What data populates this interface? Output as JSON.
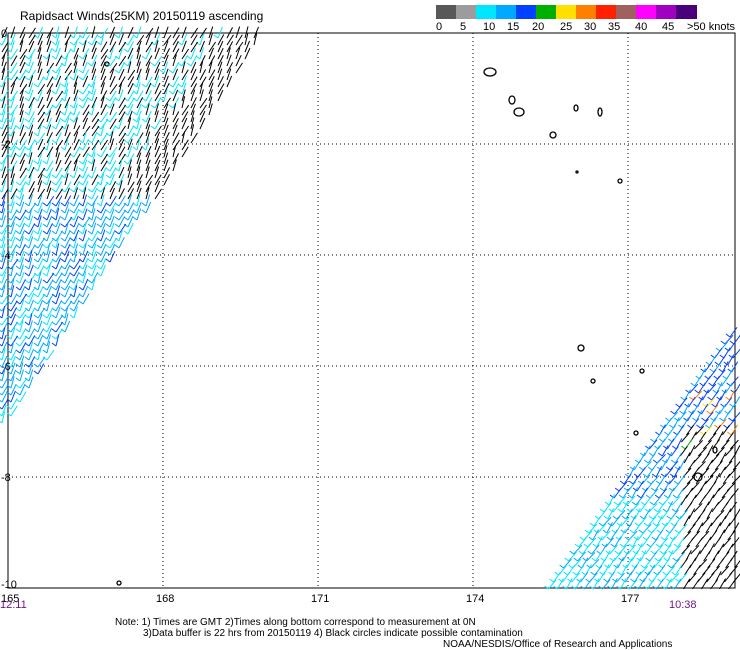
{
  "title": "Rapidsact Winds(25KM) 20150119 ascending",
  "legend": {
    "labels": [
      "0",
      "5",
      "10",
      "15",
      "20",
      "25",
      "30",
      "35",
      "40",
      "45",
      ">50 knots"
    ],
    "colors": [
      "#585858",
      "#9c9c9c",
      "#00e6ff",
      "#00a8ff",
      "#0040ff",
      "#00b000",
      "#ffe000",
      "#ff8000",
      "#ff2000",
      "#a06060",
      "#ff00ff",
      "#a000c0",
      "#4a007a"
    ]
  },
  "map": {
    "x_ticks": [
      "165",
      "168",
      "171",
      "174",
      "177"
    ],
    "y_ticks": [
      "0",
      "-2",
      "-4",
      "-6",
      "-8",
      "-10"
    ],
    "xlim": [
      165,
      179.3
    ],
    "ylim": [
      -10,
      0
    ],
    "grid": true,
    "time_left": "12:11",
    "time_right": "10:38"
  },
  "notes": {
    "line1": "Note: 1) Times are GMT 2)Times along bottom correspond to measurement at 0N",
    "line2": "3)Data buffer is 22 hrs from 20150119 4) Black circles indicate possible contamination",
    "credit": "NOAA/NESDIS/Office of Research and Applications"
  }
}
